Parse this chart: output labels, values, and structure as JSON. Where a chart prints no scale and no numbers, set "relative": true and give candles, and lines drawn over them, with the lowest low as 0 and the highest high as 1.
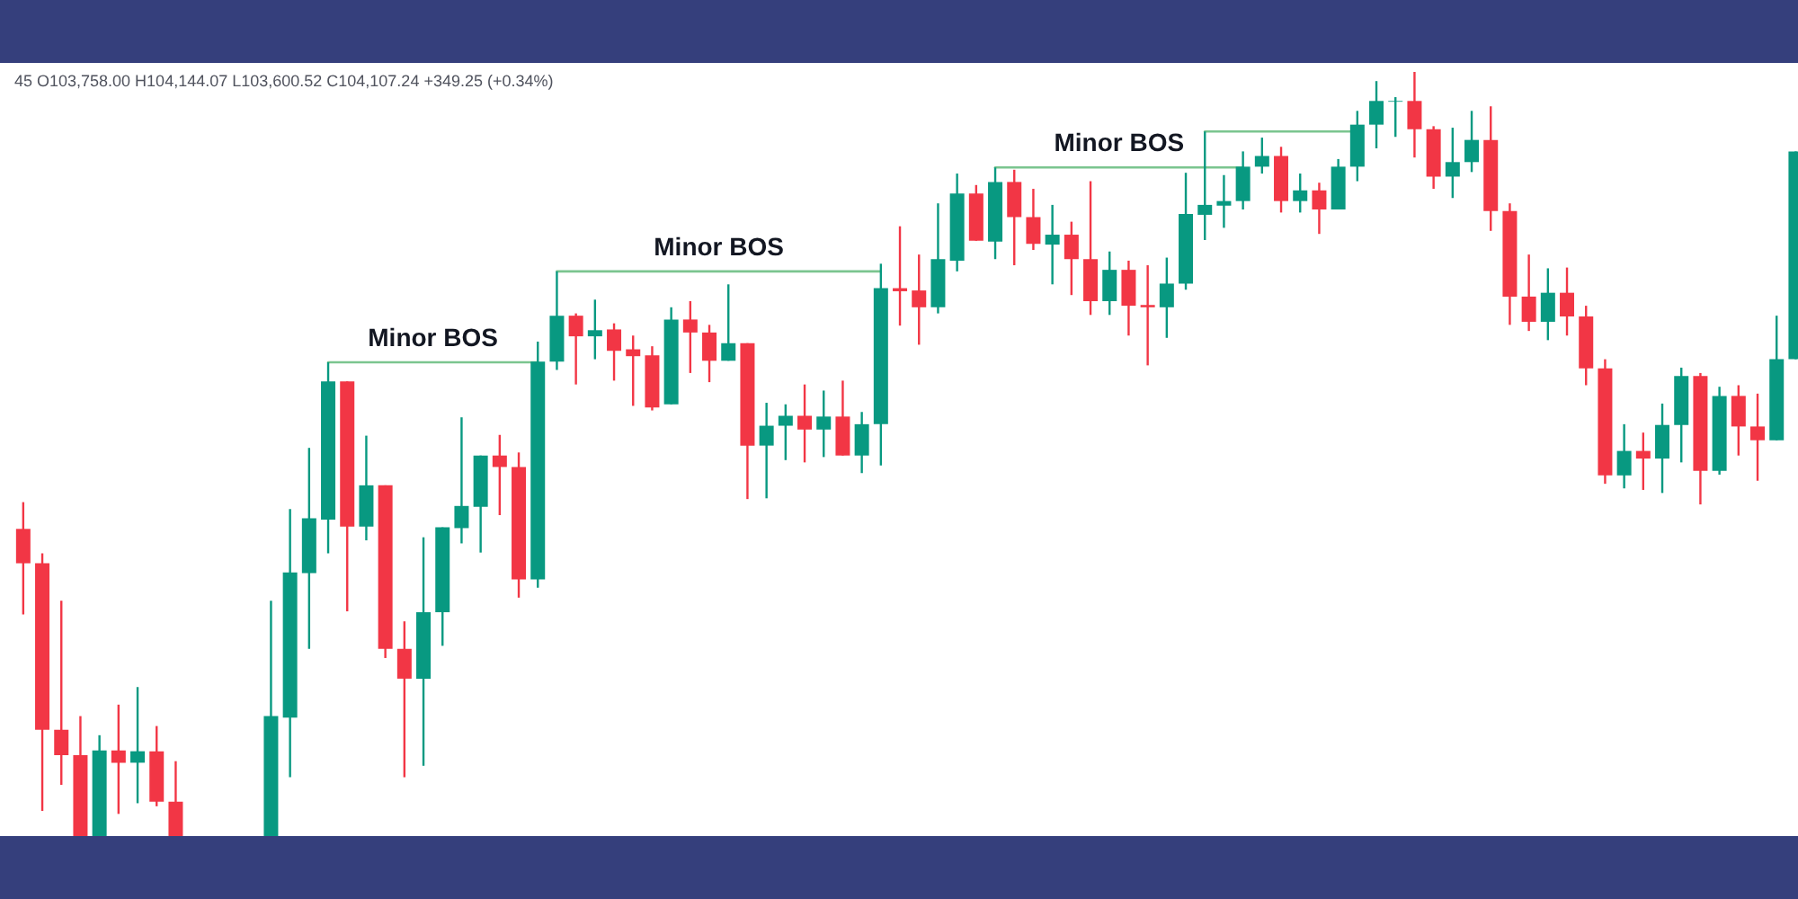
{
  "chart_data": {
    "type": "candlestick",
    "relative": true,
    "grid": false,
    "annotations": [
      "45  O103,758.00  H104,144.07  L103,600.52  C104,107.24  +349.25 (+0.34%)"
    ],
    "categories": [
      null,
      null,
      null,
      null,
      null,
      null,
      null,
      null,
      null,
      null,
      null,
      null,
      null,
      null,
      null,
      null,
      null,
      null,
      null,
      null,
      null,
      null,
      null,
      null,
      null,
      null,
      null,
      null,
      null,
      null,
      null,
      null,
      null,
      null,
      null,
      null,
      null,
      null,
      null,
      null,
      null,
      null,
      null,
      null,
      null,
      null,
      null,
      null,
      null,
      null,
      null,
      null,
      null,
      null,
      null,
      null,
      null,
      null,
      null,
      null,
      null,
      null,
      null,
      null,
      null,
      null,
      null,
      null,
      null,
      null,
      null,
      null,
      null,
      null,
      null,
      null,
      null,
      null,
      null,
      null,
      null,
      null,
      null,
      null,
      null,
      null,
      null,
      null,
      null,
      null,
      null,
      null,
      null,
      null
    ],
    "ohlc": [
      [
        0.402,
        0.437,
        0.29,
        0.357
      ],
      [
        0.357,
        0.37,
        0.033,
        0.139
      ],
      [
        0.139,
        0.308,
        0.067,
        0.106
      ],
      [
        0.106,
        0.157,
        0,
        0
      ],
      [
        0,
        0.132,
        0,
        0.112
      ],
      [
        0.112,
        0.172,
        0.029,
        0.096
      ],
      [
        0.096,
        0.195,
        0.043,
        0.111
      ],
      [
        0.111,
        0.144,
        0.039,
        0.045
      ],
      [
        0.045,
        0.098,
        0,
        0
      ],
      null,
      null,
      null,
      null,
      [
        0,
        0.308,
        0,
        0.157
      ],
      [
        0.155,
        0.428,
        0.077,
        0.345
      ],
      [
        0.344,
        0.508,
        0.245,
        0.416
      ],
      [
        0.414,
        0.62,
        0.37,
        0.595
      ],
      [
        0.595,
        0.595,
        0.294,
        0.405
      ],
      [
        0.405,
        0.524,
        0.387,
        0.459
      ],
      [
        0.459,
        0.459,
        0.233,
        0.245
      ],
      [
        0.245,
        0.281,
        0.077,
        0.206
      ],
      [
        0.206,
        0.391,
        0.092,
        0.293
      ],
      [
        0.293,
        0.404,
        0.249,
        0.404
      ],
      [
        0.403,
        0.548,
        0.383,
        0.432
      ],
      [
        0.431,
        0.498,
        0.371,
        0.498
      ],
      [
        0.498,
        0.525,
        0.42,
        0.483
      ],
      [
        0.483,
        0.502,
        0.312,
        0.336
      ],
      [
        0.336,
        0.647,
        0.325,
        0.621
      ],
      [
        0.621,
        0.739,
        0.61,
        0.681
      ],
      [
        0.681,
        0.684,
        0.591,
        0.654
      ],
      [
        0.654,
        0.702,
        0.624,
        0.662
      ],
      [
        0.663,
        0.671,
        0.596,
        0.635
      ],
      [
        0.637,
        0.655,
        0.563,
        0.628
      ],
      [
        0.629,
        0.641,
        0.557,
        0.561
      ],
      [
        0.565,
        0.692,
        0.565,
        0.676
      ],
      [
        0.676,
        0.7,
        0.606,
        0.659
      ],
      [
        0.659,
        0.669,
        0.594,
        0.622
      ],
      [
        0.622,
        0.722,
        0.622,
        0.645
      ],
      [
        0.645,
        0.645,
        0.441,
        0.511
      ],
      [
        0.511,
        0.567,
        0.442,
        0.537
      ],
      [
        0.537,
        0.565,
        0.492,
        0.55
      ],
      [
        0.55,
        0.591,
        0.489,
        0.532
      ],
      [
        0.532,
        0.583,
        0.496,
        0.549
      ],
      [
        0.549,
        0.596,
        0.498,
        0.498
      ],
      [
        0.498,
        0.555,
        0.475,
        0.539
      ],
      [
        0.539,
        0.749,
        0.485,
        0.717
      ],
      [
        0.717,
        0.798,
        0.668,
        0.713
      ],
      [
        0.714,
        0.761,
        0.643,
        0.692
      ],
      [
        0.692,
        0.828,
        0.684,
        0.755
      ],
      [
        0.753,
        0.867,
        0.739,
        0.841
      ],
      [
        0.841,
        0.852,
        0.779,
        0.779
      ],
      [
        0.778,
        0.875,
        0.755,
        0.856
      ],
      [
        0.856,
        0.872,
        0.747,
        0.81
      ],
      [
        0.81,
        0.847,
        0.767,
        0.775
      ],
      [
        0.774,
        0.826,
        0.722,
        0.787
      ],
      [
        0.787,
        0.804,
        0.708,
        0.755
      ],
      [
        0.755,
        0.857,
        0.682,
        0.7
      ],
      [
        0.7,
        0.765,
        0.682,
        0.741
      ],
      [
        0.741,
        0.753,
        0.655,
        0.694
      ],
      [
        0.695,
        0.747,
        0.616,
        0.692
      ],
      [
        0.692,
        0.757,
        0.652,
        0.723
      ],
      [
        0.723,
        0.868,
        0.715,
        0.814
      ],
      [
        0.813,
        0.922,
        0.78,
        0.826
      ],
      [
        0.825,
        0.865,
        0.796,
        0.831
      ],
      [
        0.831,
        0.896,
        0.82,
        0.876
      ],
      [
        0.876,
        0.914,
        0.867,
        0.89
      ],
      [
        0.89,
        0.902,
        0.816,
        0.831
      ],
      [
        0.831,
        0.867,
        0.816,
        0.845
      ],
      [
        0.845,
        0.855,
        0.788,
        0.82
      ],
      [
        0.82,
        0.886,
        0.82,
        0.876
      ],
      [
        0.876,
        0.949,
        0.857,
        0.931
      ],
      [
        0.931,
        0.988,
        0.9,
        0.962
      ],
      [
        0.961,
        0.967,
        0.915,
        0.962
      ],
      [
        0.962,
        1,
        0.888,
        0.925
      ],
      [
        0.925,
        0.929,
        0.847,
        0.863
      ],
      [
        0.863,
        0.927,
        0.835,
        0.882
      ],
      [
        0.882,
        0.949,
        0.869,
        0.911
      ],
      [
        0.911,
        0.955,
        0.792,
        0.818
      ],
      [
        0.818,
        0.828,
        0.669,
        0.706
      ],
      [
        0.706,
        0.761,
        0.661,
        0.673
      ],
      [
        0.673,
        0.743,
        0.649,
        0.711
      ],
      [
        0.711,
        0.744,
        0.655,
        0.68
      ],
      [
        0.68,
        0.694,
        0.59,
        0.612
      ],
      [
        0.612,
        0.624,
        0.461,
        0.472
      ],
      [
        0.472,
        0.539,
        0.455,
        0.504
      ],
      [
        0.504,
        0.528,
        0.453,
        0.494
      ],
      [
        0.494,
        0.566,
        0.449,
        0.538
      ],
      [
        0.538,
        0.613,
        0.489,
        0.602
      ],
      [
        0.602,
        0.606,
        0.434,
        0.478
      ],
      [
        0.478,
        0.588,
        0.473,
        0.576
      ],
      [
        0.576,
        0.59,
        0.498,
        0.536
      ],
      [
        0.536,
        0.579,
        0.465,
        0.518
      ],
      [
        0.518,
        0.681,
        0.518,
        0.624
      ],
      [
        0.624,
        0.896,
        0.624,
        0.896
      ]
    ],
    "colors": [
      "#f23645",
      "#f23645",
      "#f23645",
      "#f23645",
      "#089981",
      "#f23645",
      "#089981",
      "#f23645",
      "#f23645",
      null,
      null,
      null,
      null,
      "#089981",
      "#089981",
      "#089981",
      "#089981",
      "#f23645",
      "#089981",
      "#f23645",
      "#f23645",
      "#089981",
      "#089981",
      "#089981",
      "#089981",
      "#f23645",
      "#f23645",
      "#089981",
      "#089981",
      "#f23645",
      "#089981",
      "#f23645",
      "#f23645",
      "#f23645",
      "#089981",
      "#f23645",
      "#f23645",
      "#089981",
      "#f23645",
      "#089981",
      "#089981",
      "#f23645",
      "#089981",
      "#f23645",
      "#089981",
      "#089981",
      "#f23645",
      "#f23645",
      "#089981",
      "#089981",
      "#f23645",
      "#089981",
      "#f23645",
      "#f23645",
      "#089981",
      "#f23645",
      "#f23645",
      "#089981",
      "#f23645",
      "#f23645",
      "#089981",
      "#089981",
      "#089981",
      "#089981",
      "#089981",
      "#089981",
      "#f23645",
      "#089981",
      "#f23645",
      "#089981",
      "#089981",
      "#089981",
      "#089981",
      "#f23645",
      "#f23645",
      "#089981",
      "#089981",
      "#f23645",
      "#f23645",
      "#f23645",
      "#089981",
      "#f23645",
      "#f23645",
      "#f23645",
      "#089981",
      "#f23645",
      "#089981",
      "#089981",
      "#f23645",
      "#089981",
      "#f23645",
      "#f23645",
      "#089981",
      "#089981"
    ],
    "series": [
      {
        "name": "Minor BOS",
        "type": "line",
        "color": "#7bc58f",
        "values": [
          null,
          null,
          null,
          null,
          null,
          null,
          null,
          null,
          null,
          null,
          null,
          null,
          null,
          null,
          null,
          null,
          0.62,
          0.62,
          0.62,
          0.62,
          0.62,
          0.62,
          0.62,
          0.62,
          0.62,
          0.62,
          0.62,
          0.62,
          null,
          null,
          null,
          null,
          null,
          null,
          null,
          null,
          null,
          null,
          null,
          null,
          null,
          null,
          null,
          null,
          null,
          null,
          null,
          null,
          null,
          null,
          null,
          null,
          null,
          null,
          null,
          null,
          null,
          null,
          null,
          null,
          null,
          null,
          null,
          null,
          null,
          null,
          null,
          null,
          null,
          null,
          null,
          null,
          null,
          null,
          null,
          null,
          null,
          null,
          null,
          null,
          null,
          null,
          null,
          null,
          null,
          null,
          null,
          null,
          null,
          null,
          null,
          null,
          null,
          null
        ]
      },
      {
        "name": "Minor BOS",
        "type": "line",
        "color": "#7bc58f",
        "values": [
          null,
          null,
          null,
          null,
          null,
          null,
          null,
          null,
          null,
          null,
          null,
          null,
          null,
          null,
          null,
          null,
          null,
          null,
          null,
          null,
          null,
          null,
          null,
          null,
          null,
          null,
          null,
          null,
          0.739,
          0.739,
          0.739,
          0.739,
          0.739,
          0.739,
          0.739,
          0.739,
          0.739,
          0.739,
          0.739,
          0.739,
          0.739,
          0.739,
          0.739,
          0.739,
          0.739,
          0.739,
          null,
          null,
          null,
          null,
          null,
          null,
          null,
          null,
          null,
          null,
          null,
          null,
          null,
          null,
          null,
          null,
          null,
          null,
          null,
          null,
          null,
          null,
          null,
          null,
          null,
          null,
          null,
          null,
          null,
          null,
          null,
          null,
          null,
          null,
          null,
          null,
          null,
          null,
          null,
          null,
          null,
          null,
          null,
          null,
          null,
          null,
          null,
          null
        ]
      },
      {
        "name": "Minor BOS",
        "type": "line",
        "color": "#7bc58f",
        "values": [
          null,
          null,
          null,
          null,
          null,
          null,
          null,
          null,
          null,
          null,
          null,
          null,
          null,
          null,
          null,
          null,
          null,
          null,
          null,
          null,
          null,
          null,
          null,
          null,
          null,
          null,
          null,
          null,
          null,
          null,
          null,
          null,
          null,
          null,
          null,
          null,
          null,
          null,
          null,
          null,
          null,
          null,
          null,
          null,
          null,
          null,
          null,
          null,
          null,
          null,
          null,
          0.875,
          0.875,
          0.875,
          0.875,
          0.875,
          0.875,
          0.875,
          0.875,
          0.875,
          0.875,
          0.875,
          0.875,
          0.875,
          0.875,
          null,
          null,
          null,
          null,
          null,
          null,
          null,
          null,
          null,
          null,
          null,
          null,
          null,
          null,
          null,
          null,
          null,
          null,
          null,
          null,
          null,
          null,
          null,
          null,
          null,
          null,
          null,
          null,
          null
        ]
      },
      {
        "type": "line",
        "color": "#7bc58f",
        "values": [
          null,
          null,
          null,
          null,
          null,
          null,
          null,
          null,
          null,
          null,
          null,
          null,
          null,
          null,
          null,
          null,
          null,
          null,
          null,
          null,
          null,
          null,
          null,
          null,
          null,
          null,
          null,
          null,
          null,
          null,
          null,
          null,
          null,
          null,
          null,
          null,
          null,
          null,
          null,
          null,
          null,
          null,
          null,
          null,
          null,
          null,
          null,
          null,
          null,
          null,
          null,
          null,
          null,
          null,
          null,
          null,
          null,
          null,
          null,
          null,
          null,
          null,
          0.922,
          0.922,
          0.922,
          0.922,
          0.922,
          0.922,
          0.922,
          0.922,
          0.922,
          null,
          null,
          null,
          null,
          null,
          null,
          null,
          null,
          null,
          null,
          null,
          null,
          null,
          null,
          null,
          null,
          null,
          null,
          null,
          null,
          null,
          null,
          null
        ]
      }
    ]
  }
}
